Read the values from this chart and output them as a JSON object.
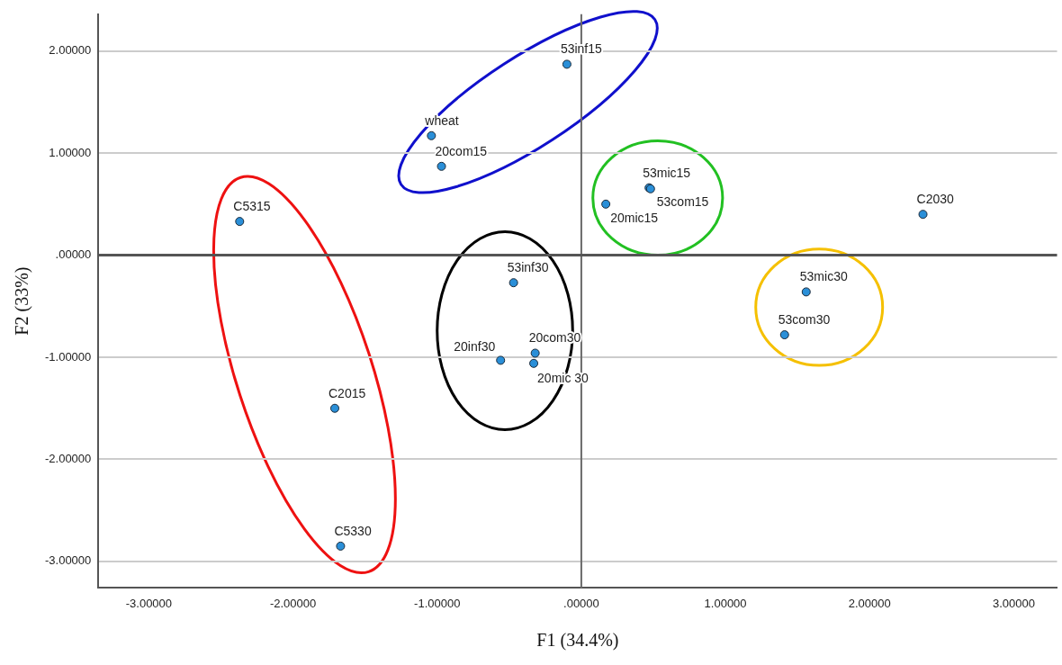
{
  "chart_data": {
    "type": "scatter",
    "xlabel": "F1 (34.4%)",
    "ylabel": "F2 (33%)",
    "x": [
      -0.1,
      -1.04,
      -0.97,
      -2.37,
      -0.47,
      0.47,
      0.48,
      0.17,
      2.37,
      1.56,
      1.41,
      -0.56,
      -0.32,
      -0.33,
      -1.71,
      -1.67
    ],
    "series": [
      {
        "color": "#2a8fd8",
        "values": [
          1.87,
          1.17,
          0.87,
          0.33,
          -0.27,
          0.66,
          0.65,
          0.5,
          0.4,
          -0.36,
          -0.78,
          -1.03,
          -0.96,
          -1.06,
          -1.5,
          -2.85
        ]
      }
    ],
    "annotations": [
      {
        "text": "53inf15",
        "x": -0.1,
        "y": 1.87
      },
      {
        "text": "wheat",
        "x": -1.04,
        "y": 1.17
      },
      {
        "text": "20com15",
        "x": -0.97,
        "y": 0.87
      },
      {
        "text": "C5315",
        "x": -2.37,
        "y": 0.33
      },
      {
        "text": "53inf30",
        "x": -0.47,
        "y": -0.27
      },
      {
        "text": "53mic15",
        "x": 0.47,
        "y": 0.66
      },
      {
        "text": "53com15",
        "x": 0.48,
        "y": 0.65
      },
      {
        "text": "20mic15",
        "x": 0.17,
        "y": 0.5
      },
      {
        "text": "C2030",
        "x": 2.37,
        "y": 0.4
      },
      {
        "text": "53mic30",
        "x": 1.56,
        "y": -0.36
      },
      {
        "text": "53com30",
        "x": 1.41,
        "y": -0.78
      },
      {
        "text": "20inf30",
        "x": -0.56,
        "y": -1.03
      },
      {
        "text": "20com30",
        "x": -0.32,
        "y": -0.96
      },
      {
        "text": "20mic 30",
        "x": -0.33,
        "y": -1.06
      },
      {
        "text": "C2015",
        "x": -1.71,
        "y": -1.5
      },
      {
        "text": "C5330",
        "x": -1.67,
        "y": -2.85
      }
    ],
    "xlim": [
      -3.35,
      3.3
    ],
    "ylim": [
      -3.26,
      2.36
    ],
    "xticks": [
      {
        "value": -3,
        "label": "-3.00000"
      },
      {
        "value": -2,
        "label": "-2.00000"
      },
      {
        "value": -1,
        "label": "-1.00000"
      },
      {
        "value": 0,
        "label": ".00000"
      },
      {
        "value": 1,
        "label": "1.00000"
      },
      {
        "value": 2,
        "label": "2.00000"
      },
      {
        "value": 3,
        "label": "3.00000"
      }
    ],
    "yticks": [
      {
        "value": -3,
        "label": "-3.00000"
      },
      {
        "value": -2,
        "label": "-2.00000"
      },
      {
        "value": -1,
        "label": "-1.00000"
      },
      {
        "value": 0,
        "label": ".00000"
      },
      {
        "value": 1,
        "label": "1.00000"
      },
      {
        "value": 2,
        "label": "2.00000"
      }
    ],
    "ref_lines": [
      {
        "axis": "x",
        "value": 0,
        "color": "#6a6a6a"
      },
      {
        "axis": "y",
        "value": 0,
        "color": "#555555"
      }
    ],
    "grid": "y",
    "legend": false,
    "marker": "circle"
  }
}
